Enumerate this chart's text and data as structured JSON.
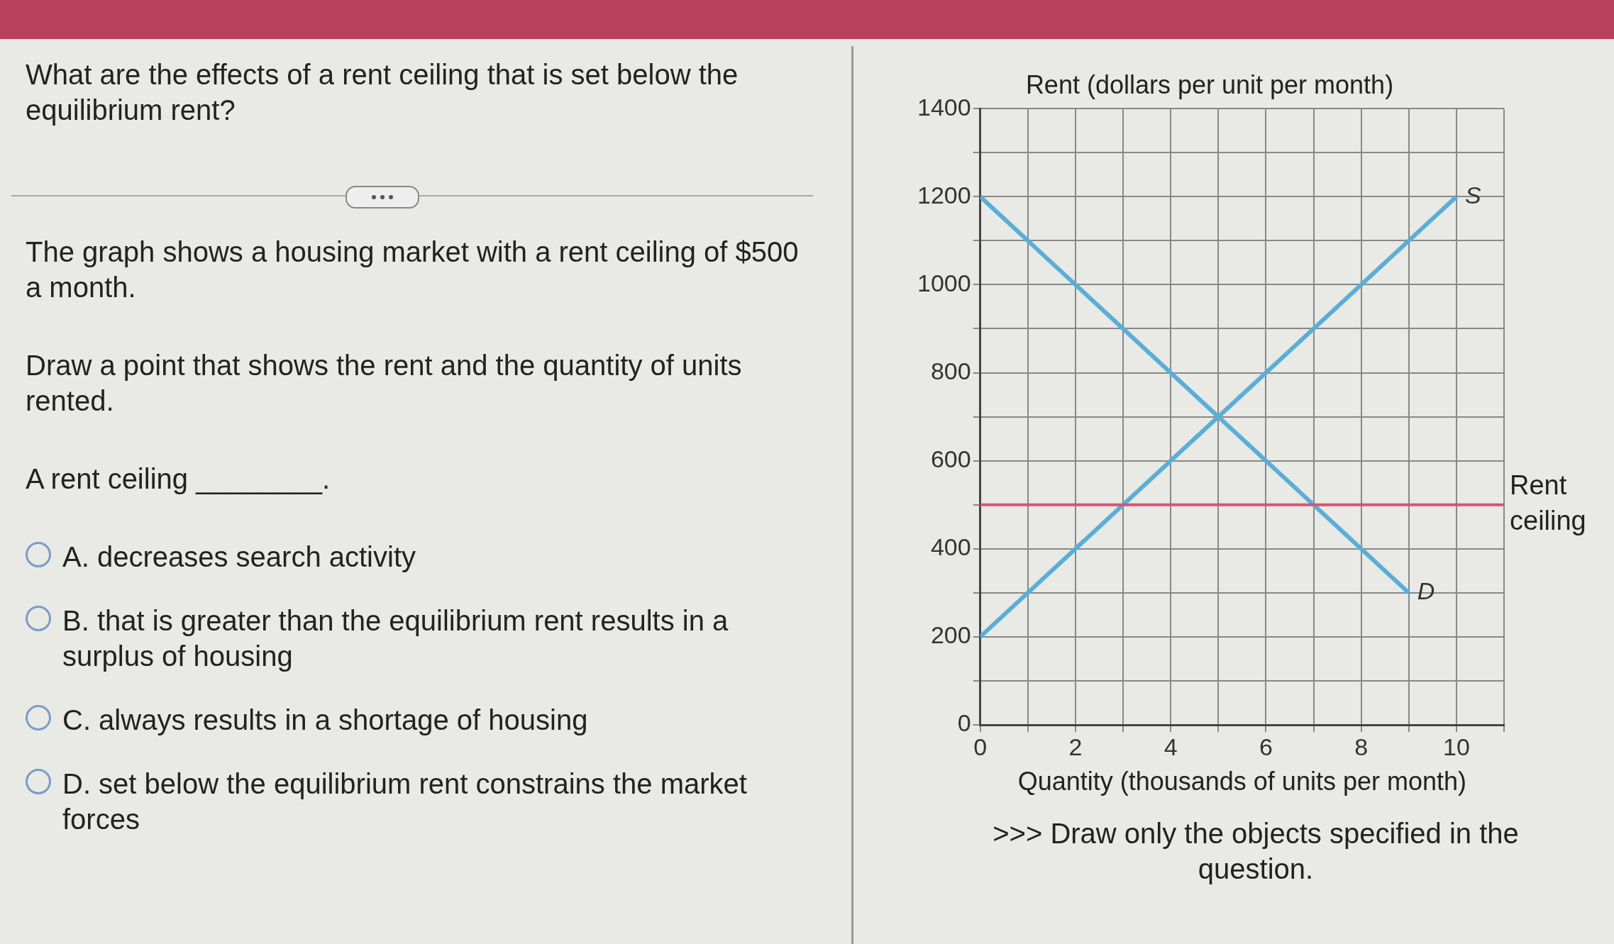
{
  "chart_data": {
    "type": "line",
    "ylabel": "Rent (dollars per unit per month)",
    "xlabel": "Quantity (thousands of units per month)",
    "series": [
      {
        "name": "S",
        "color": "#5aaed6",
        "x": [
          0,
          10
        ],
        "values": [
          200,
          1200
        ]
      },
      {
        "name": "D",
        "color": "#5aaed6",
        "x": [
          0,
          9
        ],
        "values": [
          1200,
          300
        ]
      }
    ],
    "ref_lines": [
      {
        "axis": "y",
        "value": 500,
        "label": "Rent ceiling",
        "color": "#d9536f"
      }
    ],
    "xlim": [
      0,
      11
    ],
    "xticks": [
      0,
      {
        "value": 1,
        "label": null
      },
      2,
      {
        "value": 3,
        "label": null
      },
      4,
      {
        "value": 5,
        "label": null
      },
      6,
      {
        "value": 7,
        "label": null
      },
      8,
      {
        "value": 9,
        "label": null
      },
      10,
      {
        "value": 11,
        "label": null
      }
    ],
    "ylim": [
      0,
      1400
    ],
    "yticks": [
      0,
      {
        "value": 100,
        "label": null
      },
      200,
      {
        "value": 300,
        "label": null
      },
      400,
      {
        "value": 500,
        "label": null
      },
      600,
      {
        "value": 700,
        "label": null
      },
      800,
      {
        "value": 900,
        "label": null
      },
      1000,
      {
        "value": 1100,
        "label": null
      },
      1200,
      {
        "value": 1300,
        "label": null
      },
      1400
    ],
    "grid": true,
    "legend": false,
    "marker": "none",
    "line_style": "solid",
    "annotations": [
      "What are the effects of a rent ceiling that is set below the equilibrium rent?",
      "The graph shows a housing market with a rent ceiling of $500 a month.",
      "Draw a point that shows the rent and the quantity of units rented.",
      "A rent ceiling ________.",
      "A. decreases search activity",
      "B. that is greater than the equilibrium rent results in a surplus of housing",
      "C. always results in a shortage of housing",
      "D. set below the equilibrium rent constrains the market forces",
      ">>> Draw only the objects specified in the question."
    ]
  }
}
